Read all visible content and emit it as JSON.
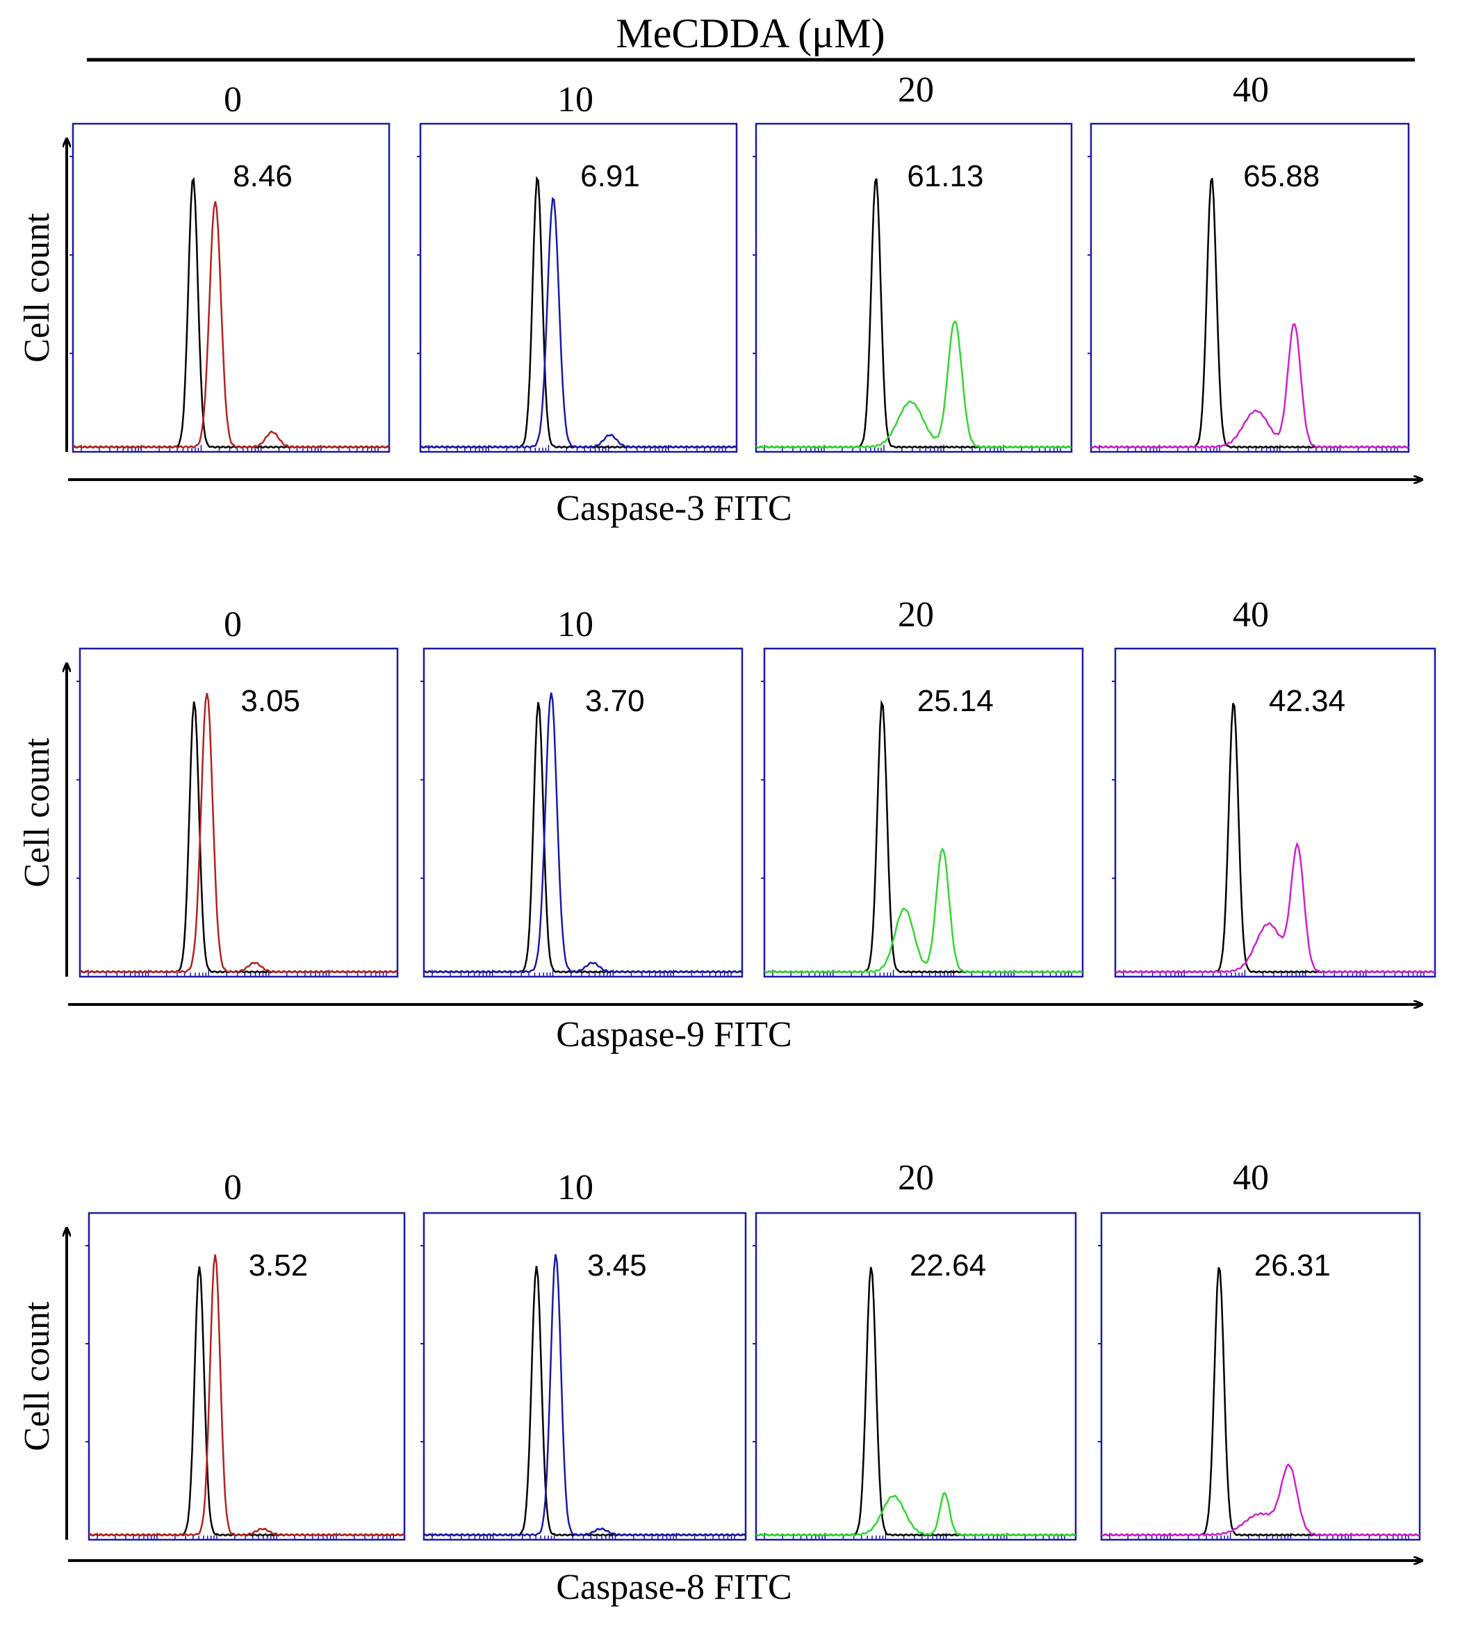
{
  "figure": {
    "title": "MeCDDA (μM)",
    "y_axis_label": "Cell count",
    "doses": [
      "0",
      "10",
      "20",
      "40"
    ]
  },
  "colors": {
    "control": "#000000",
    "dose_0": "#b22222",
    "dose_10": "#1a1aa6",
    "dose_20": "#33d633",
    "dose_40": "#cc22cc",
    "frame": "#1a1aa6"
  },
  "chart_data": [
    {
      "type": "histogram",
      "title": "Caspase-3 FITC",
      "xlabel": "Caspase-3 FITC",
      "ylabel": "Cell count",
      "panels": [
        {
          "dose": "0",
          "percent": "8.46",
          "control_peak": 0.38,
          "treated_peaks": [
            {
              "x": 0.45,
              "h": 0.82,
              "w": 0.018
            },
            {
              "x": 0.63,
              "h": 0.05,
              "w": 0.02
            }
          ]
        },
        {
          "dose": "10",
          "percent": "6.91",
          "control_peak": 0.37,
          "treated_peaks": [
            {
              "x": 0.42,
              "h": 0.83,
              "w": 0.018
            },
            {
              "x": 0.6,
              "h": 0.04,
              "w": 0.02
            }
          ]
        },
        {
          "dose": "20",
          "percent": "61.13",
          "control_peak": 0.38,
          "treated_peaks": [
            {
              "x": 0.49,
              "h": 0.15,
              "w": 0.04
            },
            {
              "x": 0.63,
              "h": 0.42,
              "w": 0.022
            }
          ]
        },
        {
          "dose": "40",
          "percent": "65.88",
          "control_peak": 0.38,
          "treated_peaks": [
            {
              "x": 0.52,
              "h": 0.12,
              "w": 0.04
            },
            {
              "x": 0.64,
              "h": 0.41,
              "w": 0.02
            }
          ]
        }
      ]
    },
    {
      "type": "histogram",
      "title": "Caspase-9 FITC",
      "xlabel": "Caspase-9 FITC",
      "ylabel": "Cell count",
      "panels": [
        {
          "dose": "0",
          "percent": "3.05",
          "control_peak": 0.36,
          "treated_peaks": [
            {
              "x": 0.4,
              "h": 0.93,
              "w": 0.018
            },
            {
              "x": 0.55,
              "h": 0.03,
              "w": 0.02
            }
          ]
        },
        {
          "dose": "10",
          "percent": "3.70",
          "control_peak": 0.36,
          "treated_peaks": [
            {
              "x": 0.4,
              "h": 0.93,
              "w": 0.018
            },
            {
              "x": 0.53,
              "h": 0.03,
              "w": 0.02
            }
          ]
        },
        {
          "dose": "20",
          "percent": "25.14",
          "control_peak": 0.37,
          "treated_peaks": [
            {
              "x": 0.44,
              "h": 0.21,
              "w": 0.03
            },
            {
              "x": 0.56,
              "h": 0.41,
              "w": 0.02
            }
          ]
        },
        {
          "dose": "40",
          "percent": "42.34",
          "control_peak": 0.37,
          "treated_peaks": [
            {
              "x": 0.48,
              "h": 0.16,
              "w": 0.04
            },
            {
              "x": 0.57,
              "h": 0.41,
              "w": 0.02
            }
          ]
        }
      ]
    },
    {
      "type": "histogram",
      "title": "Caspase-8 FITC",
      "xlabel": "Caspase-8 FITC",
      "ylabel": "Cell count",
      "panels": [
        {
          "dose": "0",
          "percent": "3.52",
          "control_peak": 0.35,
          "treated_peaks": [
            {
              "x": 0.4,
              "h": 0.94,
              "w": 0.016
            },
            {
              "x": 0.55,
              "h": 0.02,
              "w": 0.02
            }
          ]
        },
        {
          "dose": "10",
          "percent": "3.45",
          "control_peak": 0.35,
          "treated_peaks": [
            {
              "x": 0.41,
              "h": 0.94,
              "w": 0.016
            },
            {
              "x": 0.55,
              "h": 0.02,
              "w": 0.02
            }
          ]
        },
        {
          "dose": "20",
          "percent": "22.64",
          "control_peak": 0.36,
          "treated_peaks": [
            {
              "x": 0.43,
              "h": 0.13,
              "w": 0.035
            },
            {
              "x": 0.59,
              "h": 0.14,
              "w": 0.015
            }
          ]
        },
        {
          "dose": "40",
          "percent": "26.31",
          "control_peak": 0.37,
          "treated_peaks": [
            {
              "x": 0.5,
              "h": 0.07,
              "w": 0.05
            },
            {
              "x": 0.59,
              "h": 0.22,
              "w": 0.025
            }
          ]
        }
      ]
    }
  ]
}
